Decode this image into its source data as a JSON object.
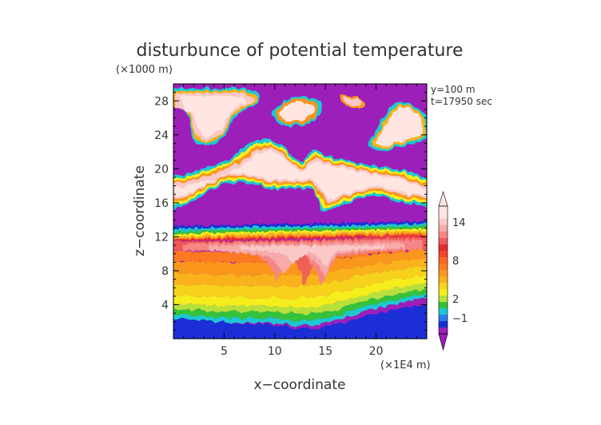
{
  "chart_data": {
    "type": "heatmap",
    "title": "disturbunce of potential temperature",
    "xlabel": "x−coordinate",
    "ylabel": "z−coordinate",
    "x_unit": "(×1E4 m)",
    "y_unit": "(×1000 m)",
    "info": [
      "y=100 m",
      "t=17950 sec"
    ],
    "xlim": [
      0,
      25
    ],
    "ylim": [
      0,
      30
    ],
    "xticks": [
      5,
      10,
      15,
      20
    ],
    "yticks": [
      4,
      8,
      12,
      16,
      20,
      24,
      28
    ],
    "colorbar": {
      "labels": [
        {
          "value": -1,
          "text": "−1"
        },
        {
          "value": 2,
          "text": "2"
        },
        {
          "value": 8,
          "text": "8"
        },
        {
          "value": 14,
          "text": "14"
        }
      ],
      "levels": [
        {
          "lo": -3,
          "hi": -2,
          "color": "#9b1fb8"
        },
        {
          "lo": -2,
          "hi": -1,
          "color": "#1a2fd6"
        },
        {
          "lo": -1,
          "hi": 0,
          "color": "#2f7cf0"
        },
        {
          "lo": 0,
          "hi": 1,
          "color": "#1ec8d2"
        },
        {
          "lo": 1,
          "hi": 2,
          "color": "#34c23a"
        },
        {
          "lo": 2,
          "hi": 3,
          "color": "#b8e03a"
        },
        {
          "lo": 3,
          "hi": 4,
          "color": "#f5ee1e"
        },
        {
          "lo": 4,
          "hi": 5,
          "color": "#f7d21c"
        },
        {
          "lo": 5,
          "hi": 6,
          "color": "#f9b21c"
        },
        {
          "lo": 6,
          "hi": 7,
          "color": "#fb961e"
        },
        {
          "lo": 7,
          "hi": 8,
          "color": "#fd7a20"
        },
        {
          "lo": 8,
          "hi": 9,
          "color": "#fb6a22"
        },
        {
          "lo": 9,
          "hi": 10,
          "color": "#f5442a"
        },
        {
          "lo": 10,
          "hi": 11,
          "color": "#e82a2a"
        },
        {
          "lo": 11,
          "hi": 12,
          "color": "#ee5c5c"
        },
        {
          "lo": 12,
          "hi": 13,
          "color": "#f48686"
        },
        {
          "lo": 13,
          "hi": 14,
          "color": "#f7aaaa"
        },
        {
          "lo": 14,
          "hi": 15,
          "color": "#fbc8c8"
        },
        {
          "lo": 15,
          "hi": 17,
          "color": "#ffe6e2"
        }
      ]
    }
  }
}
